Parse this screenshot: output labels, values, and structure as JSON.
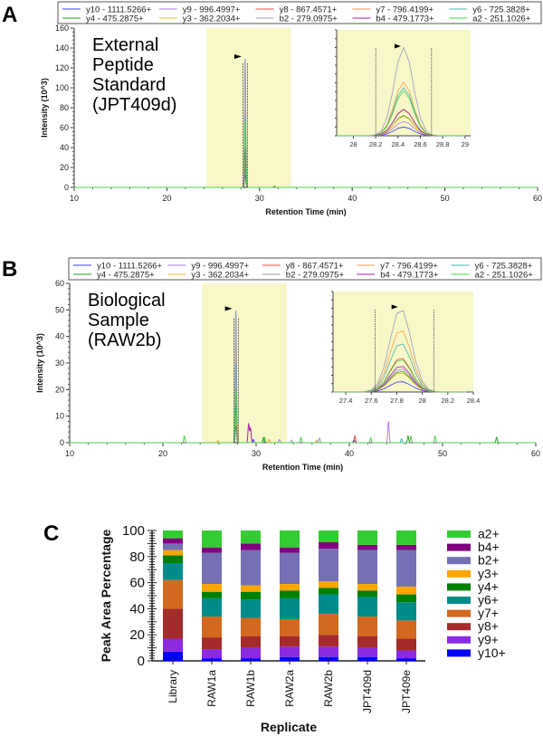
{
  "chart_data": [
    {
      "panel": "A",
      "type": "line",
      "annotation": [
        "External",
        "Peptide",
        "Standard",
        "(JPT409d)"
      ],
      "xlabel": "Retention Time (min)",
      "ylabel": "Intensity (10^3)",
      "xlim": [
        10,
        60
      ],
      "xticks": [
        10,
        20,
        30,
        40,
        50,
        60
      ],
      "ylim": [
        0,
        160
      ],
      "yticks": [
        0,
        20,
        40,
        60,
        80,
        100,
        120,
        140,
        160
      ],
      "highlight_range": [
        24.3,
        33.4
      ],
      "highlight_color": "#f7f7c8",
      "peak_boundaries": [
        28.2,
        28.7
      ],
      "inset": {
        "xlim": [
          27.85,
          29.05
        ],
        "xticks": [
          28.0,
          28.2,
          28.4,
          28.6,
          28.8,
          29.0
        ]
      },
      "series": [
        {
          "name": "y10 - 1111.5266+",
          "color": "#3a3aff",
          "peaks": [
            [
              28.45,
              13
            ]
          ]
        },
        {
          "name": "y9 - 996.4997+",
          "color": "#b877f0",
          "peaks": [
            [
              28.45,
              21
            ]
          ]
        },
        {
          "name": "y8 - 867.4571+",
          "color": "#e0503f",
          "peaks": [
            [
              28.45,
              39
            ]
          ]
        },
        {
          "name": "y7 - 796.4199+",
          "color": "#f59a4a",
          "peaks": [
            [
              28.45,
              79
            ]
          ]
        },
        {
          "name": "y6 - 725.3828+",
          "color": "#3fb5b0",
          "peaks": [
            [
              28.45,
              71
            ]
          ]
        },
        {
          "name": "y4 - 475.2875+",
          "color": "#2a9a2a",
          "peaks": [
            [
              28.45,
              30
            ]
          ]
        },
        {
          "name": "y3 - 362.2034+",
          "color": "#f7b733",
          "peaks": [
            [
              28.45,
              29
            ]
          ]
        },
        {
          "name": "b2 - 279.0975+",
          "color": "#9a9ac4",
          "peaks": [
            [
              28.45,
              130
            ]
          ]
        },
        {
          "name": "b4 - 479.1773+",
          "color": "#a0239c",
          "peaks": [
            [
              28.45,
              39
            ]
          ]
        },
        {
          "name": "a2 - 251.1026+",
          "color": "#4cd04c",
          "peaks": [
            [
              28.45,
              66
            ],
            [
              31.6,
              1.5
            ]
          ]
        }
      ]
    },
    {
      "panel": "B",
      "type": "line",
      "annotation": [
        "Biological",
        "Sample",
        "(RAW2b)"
      ],
      "xlabel": "Retention Time (min)",
      "ylabel": "Intensity (10^3)",
      "xlim": [
        10,
        60
      ],
      "xticks": [
        10,
        20,
        30,
        40,
        50,
        60
      ],
      "ylim": [
        0,
        60
      ],
      "yticks": [
        0,
        10,
        20,
        30,
        40,
        50,
        60
      ],
      "highlight_range": [
        24.2,
        33.3
      ],
      "highlight_color": "#f7f7c8",
      "peak_boundaries": [
        27.63,
        28.09
      ],
      "inset": {
        "xlim": [
          27.3,
          28.4
        ],
        "xticks": [
          27.4,
          27.6,
          27.8,
          28.0,
          28.2,
          28.4
        ]
      },
      "series": [
        {
          "name": "y10 - 1111.5266+",
          "color": "#3a3aff",
          "peaks": [
            [
              27.83,
              6.3
            ],
            [
              29.7,
              1.2
            ],
            [
              40.5,
              1.0
            ]
          ]
        },
        {
          "name": "y9 - 996.4997+",
          "color": "#b877f0",
          "peaks": [
            [
              27.83,
              14
            ],
            [
              44.2,
              8
            ],
            [
              32.5,
              1.2
            ]
          ]
        },
        {
          "name": "y8 - 867.4571+",
          "color": "#e0503f",
          "peaks": [
            [
              27.83,
              20.5
            ],
            [
              40.6,
              2.5
            ]
          ]
        },
        {
          "name": "y7 - 796.4199+",
          "color": "#f59a4a",
          "peaks": [
            [
              27.83,
              37.5
            ],
            [
              31.4,
              1.2
            ],
            [
              36.5,
              1.0
            ]
          ]
        },
        {
          "name": "y6 - 725.3828+",
          "color": "#3fb5b0",
          "peaks": [
            [
              27.83,
              29.5
            ],
            [
              45.6,
              1.5
            ]
          ]
        },
        {
          "name": "y4 - 475.2875+",
          "color": "#2a9a2a",
          "peaks": [
            [
              27.83,
              12.5
            ],
            [
              30.8,
              2
            ],
            [
              46.3,
              2.5
            ],
            [
              55.8,
              2
            ]
          ]
        },
        {
          "name": "y3 - 362.2034+",
          "color": "#f7b733",
          "peaks": [
            [
              27.83,
              11.5
            ],
            [
              25.9,
              0.8
            ]
          ]
        },
        {
          "name": "b2 - 279.0975+",
          "color": "#9a9ac4",
          "peaks": [
            [
              27.83,
              50
            ],
            [
              36.8,
              1.8
            ],
            [
              33.8,
              1.0
            ]
          ]
        },
        {
          "name": "b4 - 479.1773+",
          "color": "#a0239c",
          "peaks": [
            [
              27.83,
              15.7
            ],
            [
              29.2,
              7
            ],
            [
              29.4,
              5.5
            ]
          ]
        },
        {
          "name": "a2 - 251.1026+",
          "color": "#4cd04c",
          "peaks": [
            [
              27.83,
              19.6
            ],
            [
              22.3,
              2.5
            ],
            [
              30.9,
              2
            ],
            [
              34.8,
              2
            ],
            [
              42.3,
              1.8
            ],
            [
              46.6,
              2.4
            ],
            [
              49.2,
              2.5
            ]
          ]
        }
      ]
    },
    {
      "panel": "C",
      "type": "bar",
      "stacked": true,
      "xlabel": "Replicate",
      "ylabel": "Peak Area Percentage",
      "ylim": [
        0,
        100
      ],
      "yticks": [
        0,
        20,
        40,
        60,
        80,
        100
      ],
      "categories": [
        "Library",
        "RAW1a",
        "RAW1b",
        "RAW2a",
        "RAW2b",
        "JPT409d",
        "JPT409e"
      ],
      "legend_placement": "right",
      "series": [
        {
          "name": "y10+",
          "color": "#0000ff",
          "values": [
            7,
            2,
            2,
            3,
            3,
            3,
            2
          ]
        },
        {
          "name": "y9+",
          "color": "#8a2be2",
          "values": [
            10,
            7,
            8,
            8,
            8,
            7,
            6
          ]
        },
        {
          "name": "y8+",
          "color": "#a52a2a",
          "values": [
            23,
            9,
            9,
            8,
            9,
            9,
            9
          ]
        },
        {
          "name": "y7+",
          "color": "#d2691e",
          "values": [
            22,
            16,
            14,
            13,
            16,
            15,
            14
          ]
        },
        {
          "name": "y6+",
          "color": "#008b8b",
          "values": [
            13,
            14,
            14,
            16,
            15,
            15,
            14
          ]
        },
        {
          "name": "y4+",
          "color": "#008000",
          "values": [
            6,
            5,
            6,
            6,
            5,
            5,
            6
          ]
        },
        {
          "name": "y3+",
          "color": "#ffa500",
          "values": [
            4,
            6,
            5,
            5,
            5,
            5,
            6
          ]
        },
        {
          "name": "b2+",
          "color": "#7570b3",
          "values": [
            5,
            24,
            27,
            24,
            25,
            26,
            28
          ]
        },
        {
          "name": "b4+",
          "color": "#800080",
          "values": [
            4,
            4,
            5,
            4,
            5,
            4,
            4
          ]
        },
        {
          "name": "a2+",
          "color": "#33cc33",
          "values": [
            6,
            13,
            10,
            13,
            9,
            11,
            11
          ]
        }
      ]
    }
  ],
  "panel_letters": [
    "A",
    "B",
    "C"
  ]
}
